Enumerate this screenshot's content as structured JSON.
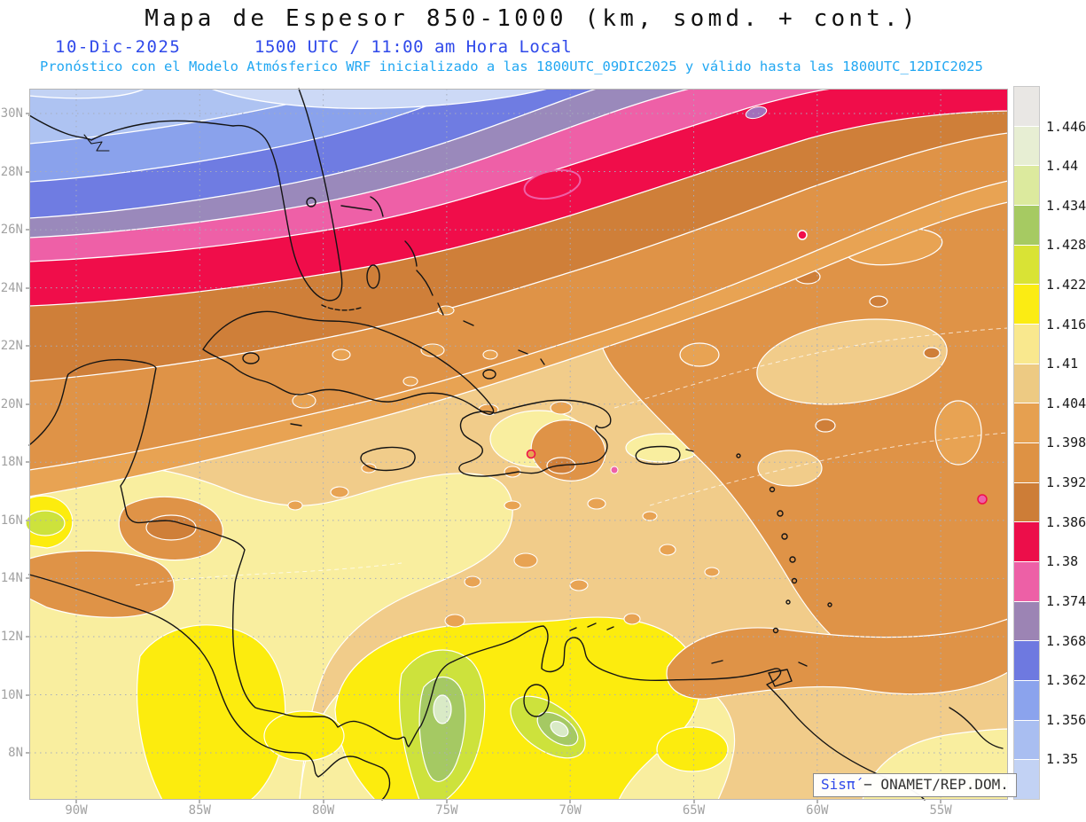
{
  "header": {
    "title": "Mapa de Espesor 850-1000 (km, somd. + cont.)",
    "date": "10-Dic-2025",
    "time": "1500 UTC / 11:00 am Hora Local",
    "forecast": "Pronóstico con el Modelo Atmósferico WRF inicializado a las 1800UTC_09DIC2025 y válido hasta las  1800UTC_12DIC2025"
  },
  "axes": {
    "lat_labels": [
      "30N",
      "28N",
      "26N",
      "24N",
      "22N",
      "20N",
      "18N",
      "16N",
      "14N",
      "12N",
      "10N",
      "8N"
    ],
    "lon_labels": [
      "90W",
      "85W",
      "80W",
      "75W",
      "70W",
      "65W",
      "60W",
      "55W"
    ]
  },
  "colorbar": {
    "labels": [
      "1.446",
      "1.44",
      "1.434",
      "1.428",
      "1.422",
      "1.416",
      "1.41",
      "1.404",
      "1.398",
      "1.392",
      "1.386",
      "1.38",
      "1.374",
      "1.368",
      "1.362",
      "1.356",
      "1.35"
    ],
    "segment_colors": [
      "#e9e7e4",
      "#e7eed3",
      "#dcea9e",
      "#a6ca62",
      "#d9e335",
      "#fbec13",
      "#f9e88e",
      "#edca83",
      "#e6a050",
      "#de9244",
      "#cd7d37",
      "#ec0e4a",
      "#ed60a6",
      "#9c84b4",
      "#6e79e0",
      "#8ba3ed",
      "#a9bef1",
      "#c2d2f4"
    ]
  },
  "watermark": {
    "logo": "Sisπ́",
    "agency": " − ONAMET/REP.DOM."
  }
}
